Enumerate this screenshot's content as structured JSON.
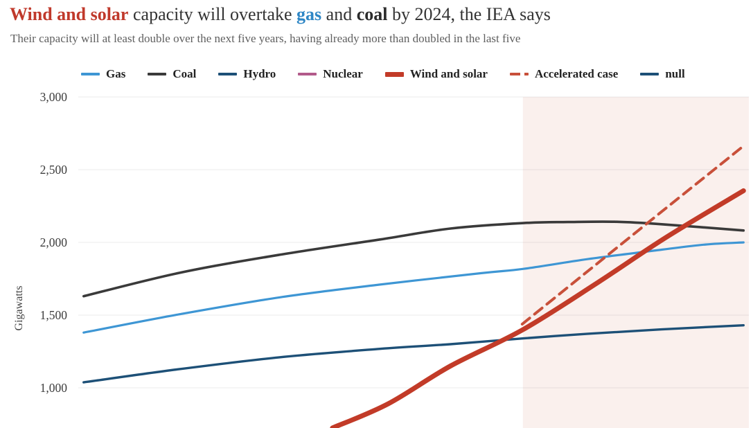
{
  "header": {
    "title_parts": [
      {
        "text": "Wind and solar",
        "color": "#c0392b",
        "bold": true
      },
      {
        "text": " capacity will overtake ",
        "color": "#333333",
        "bold": false
      },
      {
        "text": "gas",
        "color": "#2e86c5",
        "bold": true
      },
      {
        "text": " and ",
        "color": "#333333",
        "bold": false
      },
      {
        "text": "coal",
        "color": "#2b2b2b",
        "bold": true
      },
      {
        "text": " by 2024, the IEA says",
        "color": "#333333",
        "bold": false
      }
    ],
    "subtitle": "Their capacity will at least double over the next five years, having already more than doubled in the last five"
  },
  "legend": {
    "items": [
      {
        "label": "Gas",
        "color": "#3e96d4",
        "style": "solid",
        "thick": false
      },
      {
        "label": "Coal",
        "color": "#3a3a3a",
        "style": "solid",
        "thick": false
      },
      {
        "label": "Hydro",
        "color": "#1d5077",
        "style": "solid",
        "thick": false
      },
      {
        "label": "Nuclear",
        "color": "#b25a8a",
        "style": "solid",
        "thick": false
      },
      {
        "label": "Wind and solar",
        "color": "#c23b28",
        "style": "solid",
        "thick": true
      },
      {
        "label": "Accelerated case",
        "color": "#c8503a",
        "style": "dashed",
        "thick": false
      },
      {
        "label": "null",
        "color": "#1d5077",
        "style": "solid",
        "thick": false
      }
    ]
  },
  "chart_data": {
    "type": "line",
    "ylabel": "Gigawatts",
    "unit": "GW",
    "yticks": [
      {
        "value": 3000,
        "label": "3,000"
      },
      {
        "value": 2500,
        "label": "2,500"
      },
      {
        "value": 2000,
        "label": "2,000"
      },
      {
        "value": 1500,
        "label": "1,500"
      },
      {
        "value": 1000,
        "label": "1,000"
      }
    ],
    "y_axis_range_visible": [
      724,
      3000
    ],
    "x_axis_labels_visible": false,
    "grid_color": "rgba(60,60,60,0.10)",
    "forecast_band": {
      "x_start_fraction": 0.663,
      "x_end_fraction": 1.0,
      "color": "#faf0ed"
    },
    "series": [
      {
        "name": "Gas",
        "color": "#3e96d4",
        "width": 3.2,
        "dash": null,
        "visible": true,
        "points": [
          [
            0.008,
            1380
          ],
          [
            0.15,
            1505
          ],
          [
            0.3,
            1622
          ],
          [
            0.45,
            1710
          ],
          [
            0.6,
            1788
          ],
          [
            0.664,
            1818
          ],
          [
            0.76,
            1885
          ],
          [
            0.87,
            1950
          ],
          [
            0.935,
            1985
          ],
          [
            0.992,
            2000
          ]
        ]
      },
      {
        "name": "Coal",
        "color": "#3a3a3a",
        "width": 3.6,
        "dash": null,
        "visible": true,
        "points": [
          [
            0.008,
            1630
          ],
          [
            0.15,
            1790
          ],
          [
            0.3,
            1915
          ],
          [
            0.45,
            2020
          ],
          [
            0.555,
            2095
          ],
          [
            0.664,
            2133
          ],
          [
            0.73,
            2140
          ],
          [
            0.8,
            2142
          ],
          [
            0.87,
            2125
          ],
          [
            0.992,
            2082
          ]
        ]
      },
      {
        "name": "Hydro",
        "color": "#1d5077",
        "width": 3.4,
        "dash": null,
        "visible": true,
        "points": [
          [
            0.008,
            1038
          ],
          [
            0.15,
            1128
          ],
          [
            0.3,
            1210
          ],
          [
            0.45,
            1268
          ],
          [
            0.555,
            1300
          ],
          [
            0.664,
            1340
          ],
          [
            0.76,
            1372
          ],
          [
            0.87,
            1402
          ],
          [
            0.992,
            1430
          ]
        ]
      },
      {
        "name": "Nuclear",
        "color": "#b25a8a",
        "width": 3.4,
        "dash": null,
        "visible": false,
        "points": []
      },
      {
        "name": "Accelerated case",
        "color": "#c8503a",
        "width": 4,
        "dash": "14 9",
        "visible": true,
        "points": [
          [
            0.662,
            1438
          ],
          [
            0.77,
            1840
          ],
          [
            0.875,
            2230
          ],
          [
            0.988,
            2648
          ]
        ]
      },
      {
        "name": "Wind and solar",
        "color": "#c23b28",
        "width": 7,
        "dash": null,
        "visible": true,
        "points": [
          [
            0.379,
            724
          ],
          [
            0.462,
            890
          ],
          [
            0.555,
            1150
          ],
          [
            0.663,
            1400
          ],
          [
            0.775,
            1725
          ],
          [
            0.875,
            2030
          ],
          [
            0.992,
            2355
          ]
        ]
      }
    ]
  }
}
